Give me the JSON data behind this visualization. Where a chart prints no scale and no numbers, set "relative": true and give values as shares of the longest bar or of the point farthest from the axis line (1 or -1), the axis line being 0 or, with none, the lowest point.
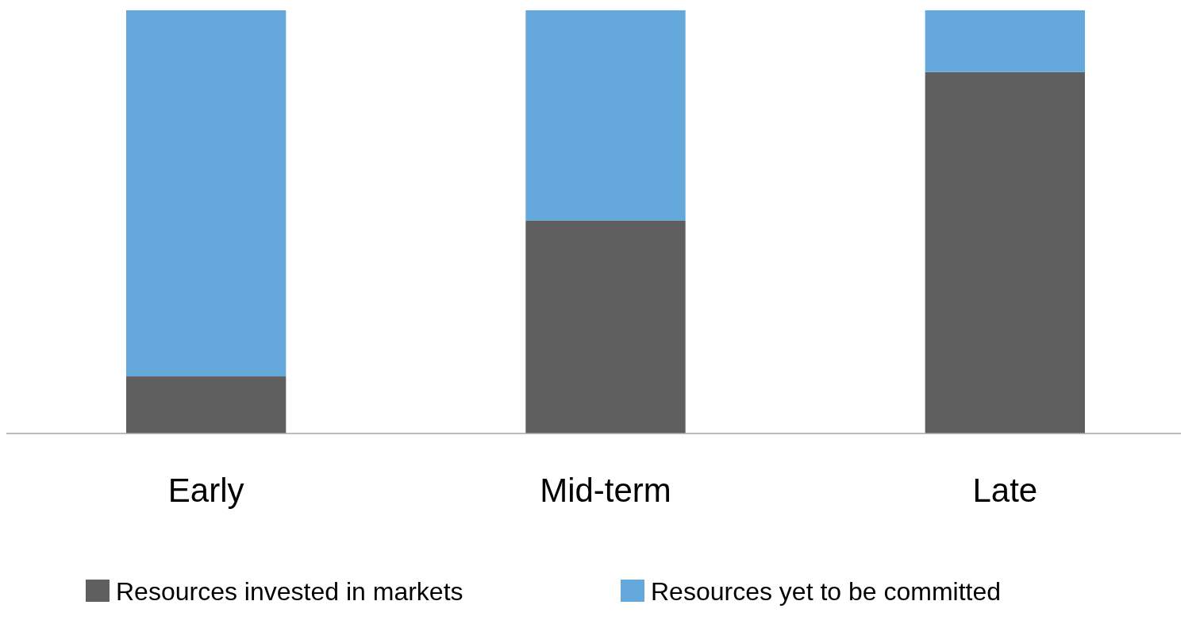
{
  "chart_data": {
    "type": "bar",
    "stacked": true,
    "relative": true,
    "legend": "bottom",
    "categories": [
      "Early",
      "Mid-term",
      "Late"
    ],
    "series": [
      {
        "name": "Resources invested in markets",
        "color": "#5f5f5f",
        "values": [
          0.135,
          0.503,
          0.854
        ]
      },
      {
        "name": "Resources yet to be committed",
        "color": "#65a9dc",
        "values": [
          0.865,
          0.497,
          0.146
        ]
      }
    ]
  }
}
